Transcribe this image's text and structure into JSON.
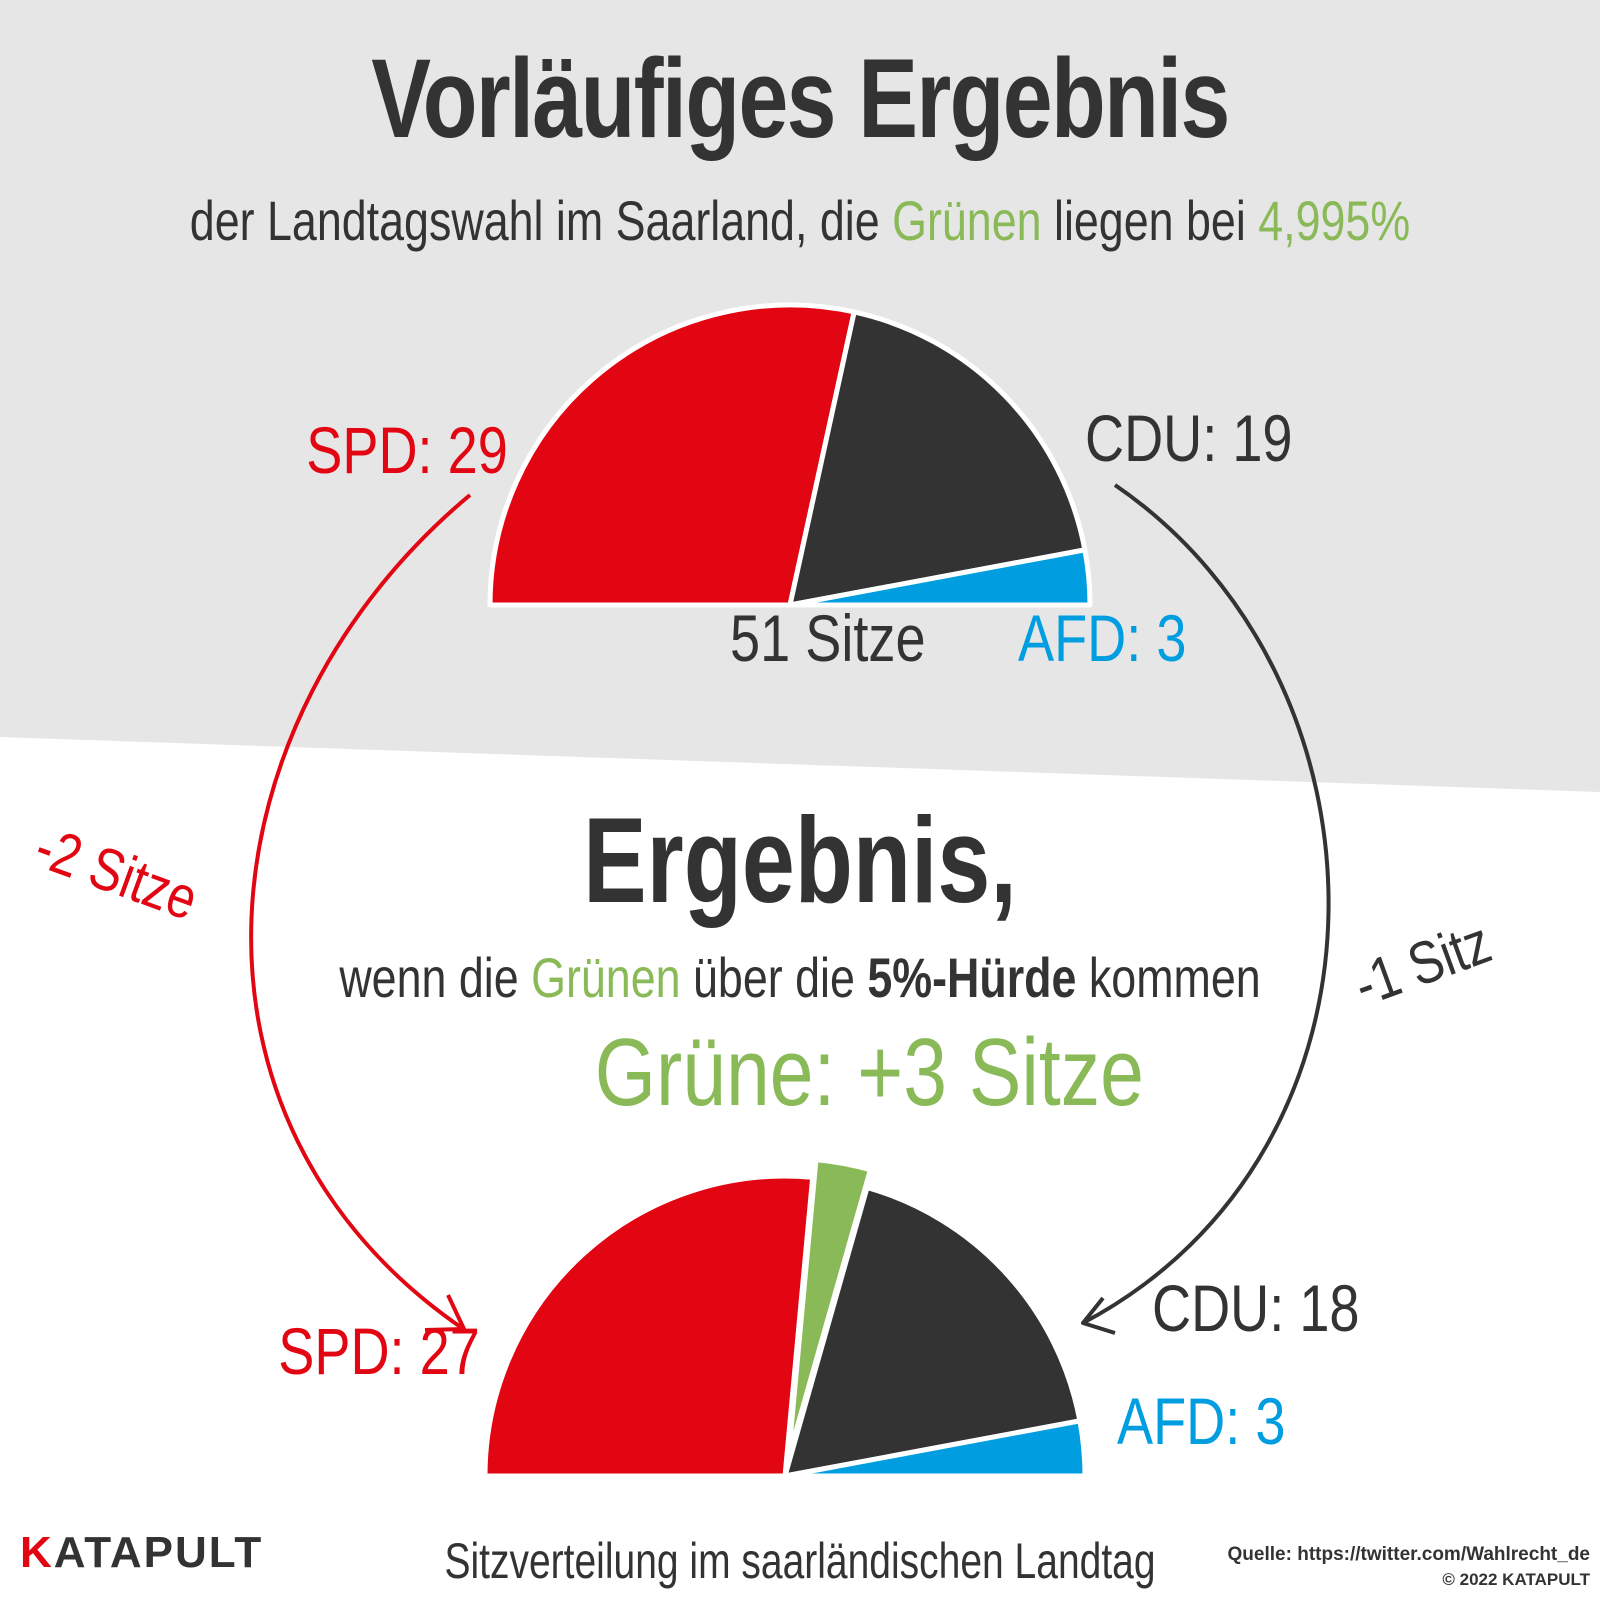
{
  "header": {
    "title": "Vorläufiges Ergebnis",
    "subtitle_pre": "der Landtagswahl im Saarland, die ",
    "subtitle_green": "Grünen",
    "subtitle_mid": " liegen bei ",
    "subtitle_value": "4,995%"
  },
  "section2": {
    "title": "Ergebnis,",
    "subtitle_pre": "wenn die ",
    "subtitle_green": "Grünen",
    "subtitle_mid": " über die ",
    "subtitle_bold": "5%-Hürde",
    "subtitle_post": " kommen",
    "gain_label": "Grüne: +3 Sitze"
  },
  "changes": {
    "spd": "-2 Sitze",
    "cdu": "-1 Sitz"
  },
  "colors": {
    "spd": "#e20613",
    "cdu": "#333333",
    "afd": "#009ee0",
    "gruene": "#8aba57",
    "top_background": "#e6e6e6"
  },
  "chart_data": [
    {
      "type": "pie",
      "title": "Vorläufiges Ergebnis",
      "variant": "semicircle parliament",
      "total_label": "51 Sitze",
      "parties": [
        {
          "name": "SPD",
          "seats": 29,
          "label": "SPD: 29",
          "color": "#e20613"
        },
        {
          "name": "CDU",
          "seats": 19,
          "label": "CDU: 19",
          "color": "#333333"
        },
        {
          "name": "AFD",
          "seats": 3,
          "label": "AFD: 3",
          "color": "#009ee0"
        }
      ]
    },
    {
      "type": "pie",
      "title": "Ergebnis, wenn die Grünen über die 5%-Hürde kommen",
      "variant": "semicircle parliament",
      "parties": [
        {
          "name": "SPD",
          "seats": 27,
          "label": "SPD: 27",
          "color": "#e20613"
        },
        {
          "name": "Grüne",
          "seats": 3,
          "label": "Grüne: +3 Sitze",
          "color": "#8aba57",
          "highlight": true
        },
        {
          "name": "CDU",
          "seats": 18,
          "label": "CDU: 18",
          "color": "#333333"
        },
        {
          "name": "AFD",
          "seats": 3,
          "label": "AFD: 3",
          "color": "#009ee0"
        }
      ]
    }
  ],
  "footer": {
    "logo_k": "K",
    "logo_rest": "ATAPULT",
    "caption": "Sitzverteilung im saarländischen Landtag",
    "source": "Quelle: https://twitter.com/Wahlrecht_de",
    "credit": "© 2022 KATAPULT"
  }
}
